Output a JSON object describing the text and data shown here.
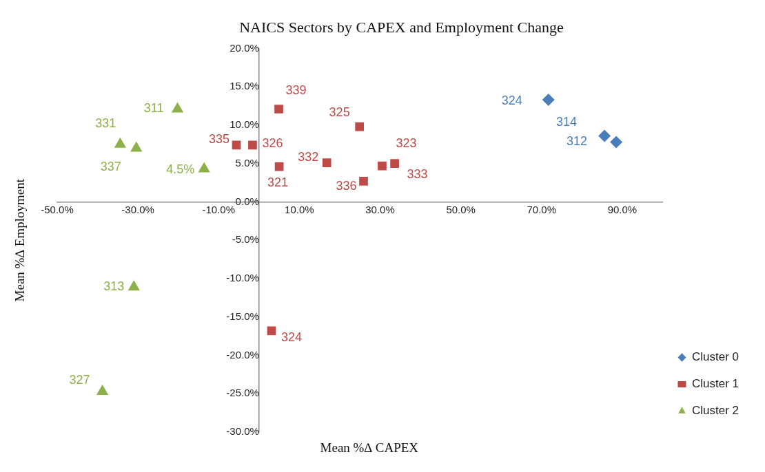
{
  "chart_data": {
    "type": "scatter",
    "title": "NAICS Sectors by CAPEX and Employment Change",
    "xlabel": "Mean %∆ CAPEX",
    "ylabel": "Mean %∆ Employment",
    "xlim": [
      -50,
      100
    ],
    "xticks": [
      {
        "value": -50,
        "label": "-50.0%"
      },
      {
        "value": -30,
        "label": "-30.0%"
      },
      {
        "value": -10,
        "label": "-10.0%"
      },
      {
        "value": 10,
        "label": "10.0%"
      },
      {
        "value": 30,
        "label": "30.0%"
      },
      {
        "value": 50,
        "label": "50.0%"
      },
      {
        "value": 70,
        "label": "70.0%"
      },
      {
        "value": 90,
        "label": "90.0%"
      }
    ],
    "ylim": [
      -30,
      20
    ],
    "yticks": [
      {
        "value": -30,
        "label": "-30.0%"
      },
      {
        "value": -25,
        "label": "-25.0%"
      },
      {
        "value": -20,
        "label": "-20.0%"
      },
      {
        "value": -15,
        "label": "-15.0%"
      },
      {
        "value": -10,
        "label": "-10.0%"
      },
      {
        "value": -5,
        "label": "-5.0%"
      },
      {
        "value": 0,
        "label": "0.0%"
      },
      {
        "value": 5,
        "label": "5.0%"
      },
      {
        "value": 10,
        "label": "10.0%"
      },
      {
        "value": 15,
        "label": "15.0%"
      },
      {
        "value": 20,
        "label": "20.0%"
      }
    ],
    "grid": false,
    "legend": "bottom right",
    "series": [
      {
        "name": "Cluster 0",
        "color": "#4a7ebb",
        "marker": "diamond",
        "x": [
          71.7,
          85.6,
          88.5
        ],
        "values": [
          13.3,
          8.6,
          7.8
        ]
      },
      {
        "name": "Cluster 1",
        "color": "#be4b48",
        "marker": "square",
        "x": [
          4.9,
          -5.6,
          -1.6,
          5.0,
          16.8,
          24.9,
          25.9,
          30.5,
          33.6,
          3.1
        ],
        "values": [
          12.1,
          7.4,
          7.4,
          4.6,
          5.1,
          9.8,
          2.7,
          4.7,
          5.0,
          -16.8
        ]
      },
      {
        "name": "Cluster 2",
        "color": "#8cb04a",
        "marker": "triangle",
        "x": [
          -20.2,
          -34.4,
          -30.4,
          -13.6,
          -31.0,
          -38.8
        ],
        "values": [
          12.1,
          7.5,
          7.0,
          4.3,
          -11.1,
          -24.7
        ]
      }
    ],
    "annotations": [
      {
        "text": "324",
        "x": 71.7,
        "y": 13.3
      },
      {
        "text": "314",
        "x": 85.6,
        "y": 8.6
      },
      {
        "text": "312",
        "x": 88.5,
        "y": 7.8
      },
      {
        "text": "339",
        "x": 4.9,
        "y": 12.1
      },
      {
        "text": "335",
        "x": -5.6,
        "y": 7.4
      },
      {
        "text": "326",
        "x": -1.6,
        "y": 7.4
      },
      {
        "text": "321",
        "x": 5.0,
        "y": 4.6
      },
      {
        "text": "332",
        "x": 16.8,
        "y": 5.1
      },
      {
        "text": "325",
        "x": 24.9,
        "y": 9.8
      },
      {
        "text": "336",
        "x": 25.9,
        "y": 2.7
      },
      {
        "text": "323",
        "x": 30.5,
        "y": 4.7
      },
      {
        "text": "333",
        "x": 33.6,
        "y": 5.0
      },
      {
        "text": "324",
        "x": 3.1,
        "y": -16.8
      },
      {
        "text": "311",
        "x": -20.2,
        "y": 12.1
      },
      {
        "text": "331",
        "x": -34.4,
        "y": 7.5
      },
      {
        "text": "337",
        "x": -30.4,
        "y": 7.0
      },
      {
        "text": "4.5%",
        "x": -13.6,
        "y": 4.3
      },
      {
        "text": "313",
        "x": -31.0,
        "y": -11.1
      },
      {
        "text": "327",
        "x": -38.8,
        "y": -24.7
      }
    ]
  }
}
